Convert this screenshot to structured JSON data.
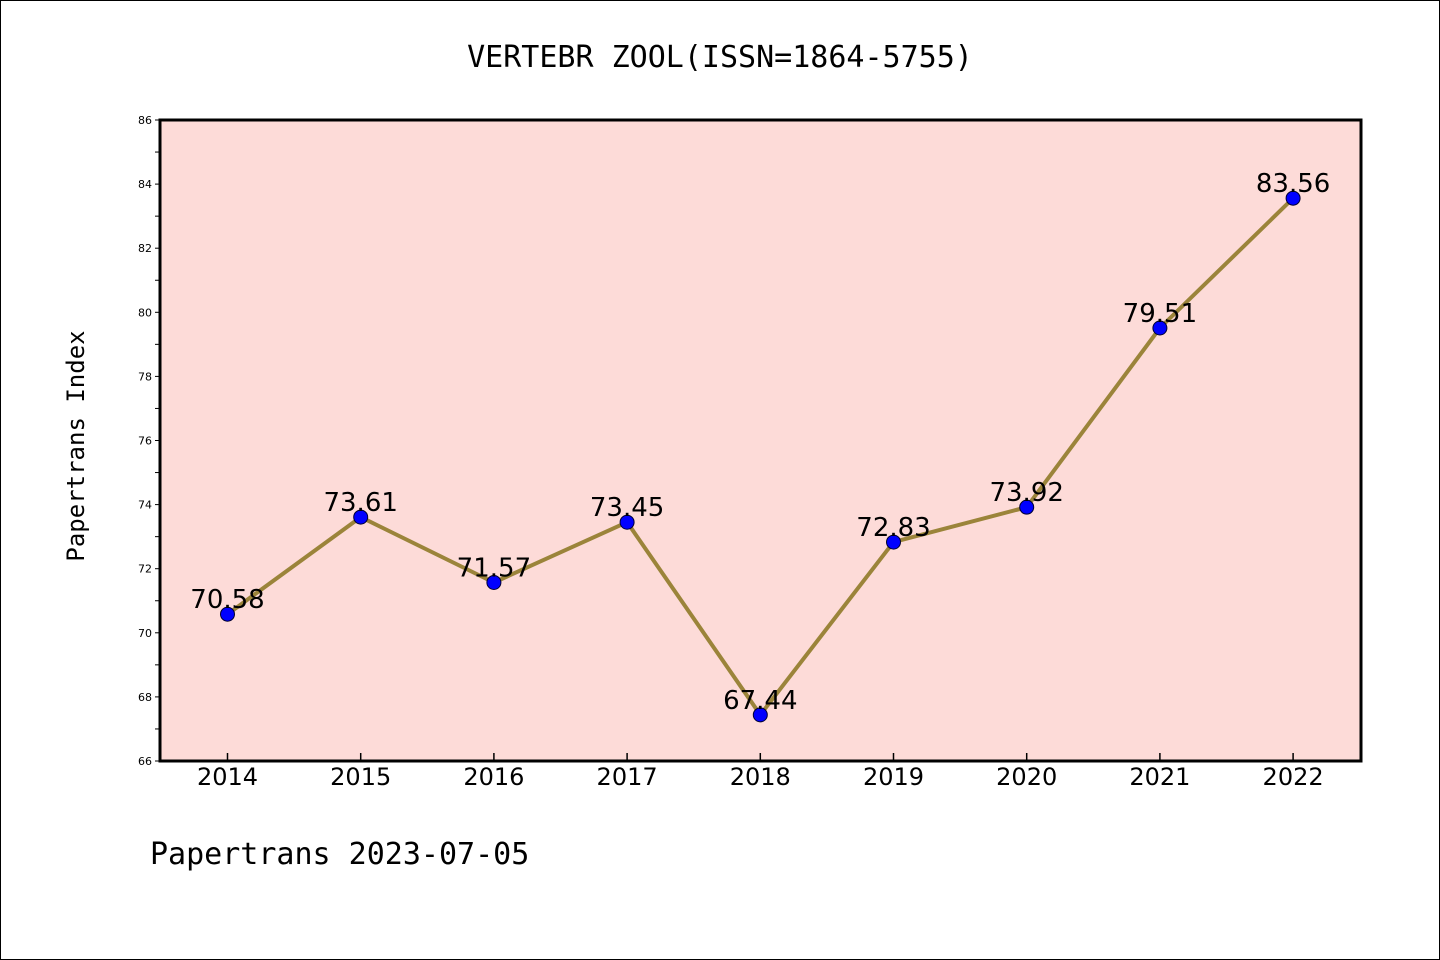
{
  "chart_data": {
    "type": "line",
    "title": "VERTEBR ZOOL(ISSN=1864-5755)",
    "xlabel": "",
    "ylabel": "Papertrans Index",
    "categories": [
      "2014",
      "2015",
      "2016",
      "2017",
      "2018",
      "2019",
      "2020",
      "2021",
      "2022"
    ],
    "values": [
      70.58,
      73.61,
      71.57,
      73.45,
      67.44,
      72.83,
      73.92,
      79.51,
      83.56
    ],
    "data_labels": [
      "70.58",
      "73.61",
      "71.57",
      "73.45",
      "67.44",
      "72.83",
      "73.92",
      "79.51",
      "83.56"
    ],
    "ylim": [
      66,
      86
    ],
    "yticks": [
      "66",
      "68",
      "70",
      "72",
      "74",
      "76",
      "78",
      "80",
      "82",
      "84",
      "86"
    ],
    "grid": false,
    "legend": "none",
    "colors": {
      "plot_background": "#fddbd8",
      "line": "#9b843a",
      "marker": "#0000ff"
    }
  },
  "footer": "Papertrans 2023-07-05"
}
